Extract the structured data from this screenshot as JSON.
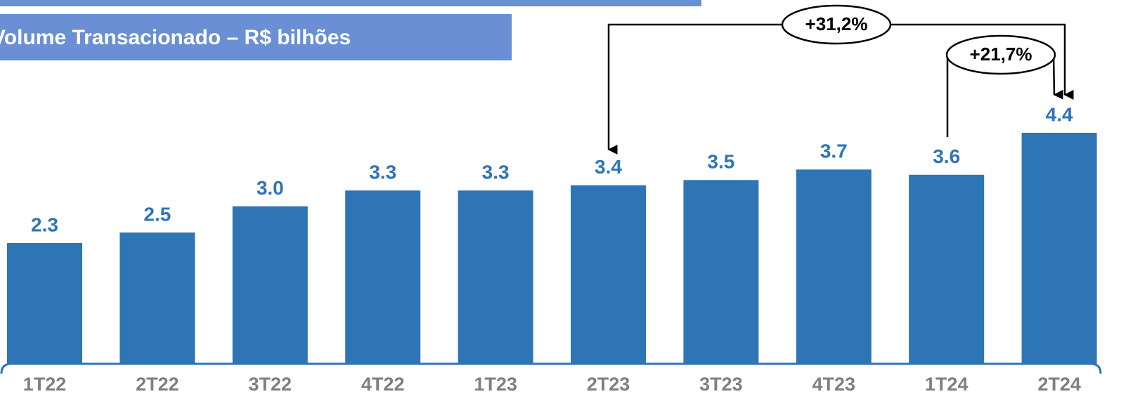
{
  "chart_data": {
    "type": "bar",
    "title": "Volume Transacionado – R$ bilhões",
    "categories": [
      "1T22",
      "2T22",
      "3T22",
      "4T22",
      "1T23",
      "2T23",
      "3T23",
      "4T23",
      "1T24",
      "2T24"
    ],
    "values": [
      2.3,
      2.5,
      3.0,
      3.3,
      3.3,
      3.4,
      3.5,
      3.7,
      3.6,
      4.4
    ],
    "value_labels": [
      "2.3",
      "2.5",
      "3.0",
      "3.3",
      "3.3",
      "3.4",
      "3.5",
      "3.7",
      "3.6",
      "4.4"
    ],
    "color": "#2e75b6",
    "annotations": [
      "+31,2%",
      "+21,7%"
    ]
  }
}
